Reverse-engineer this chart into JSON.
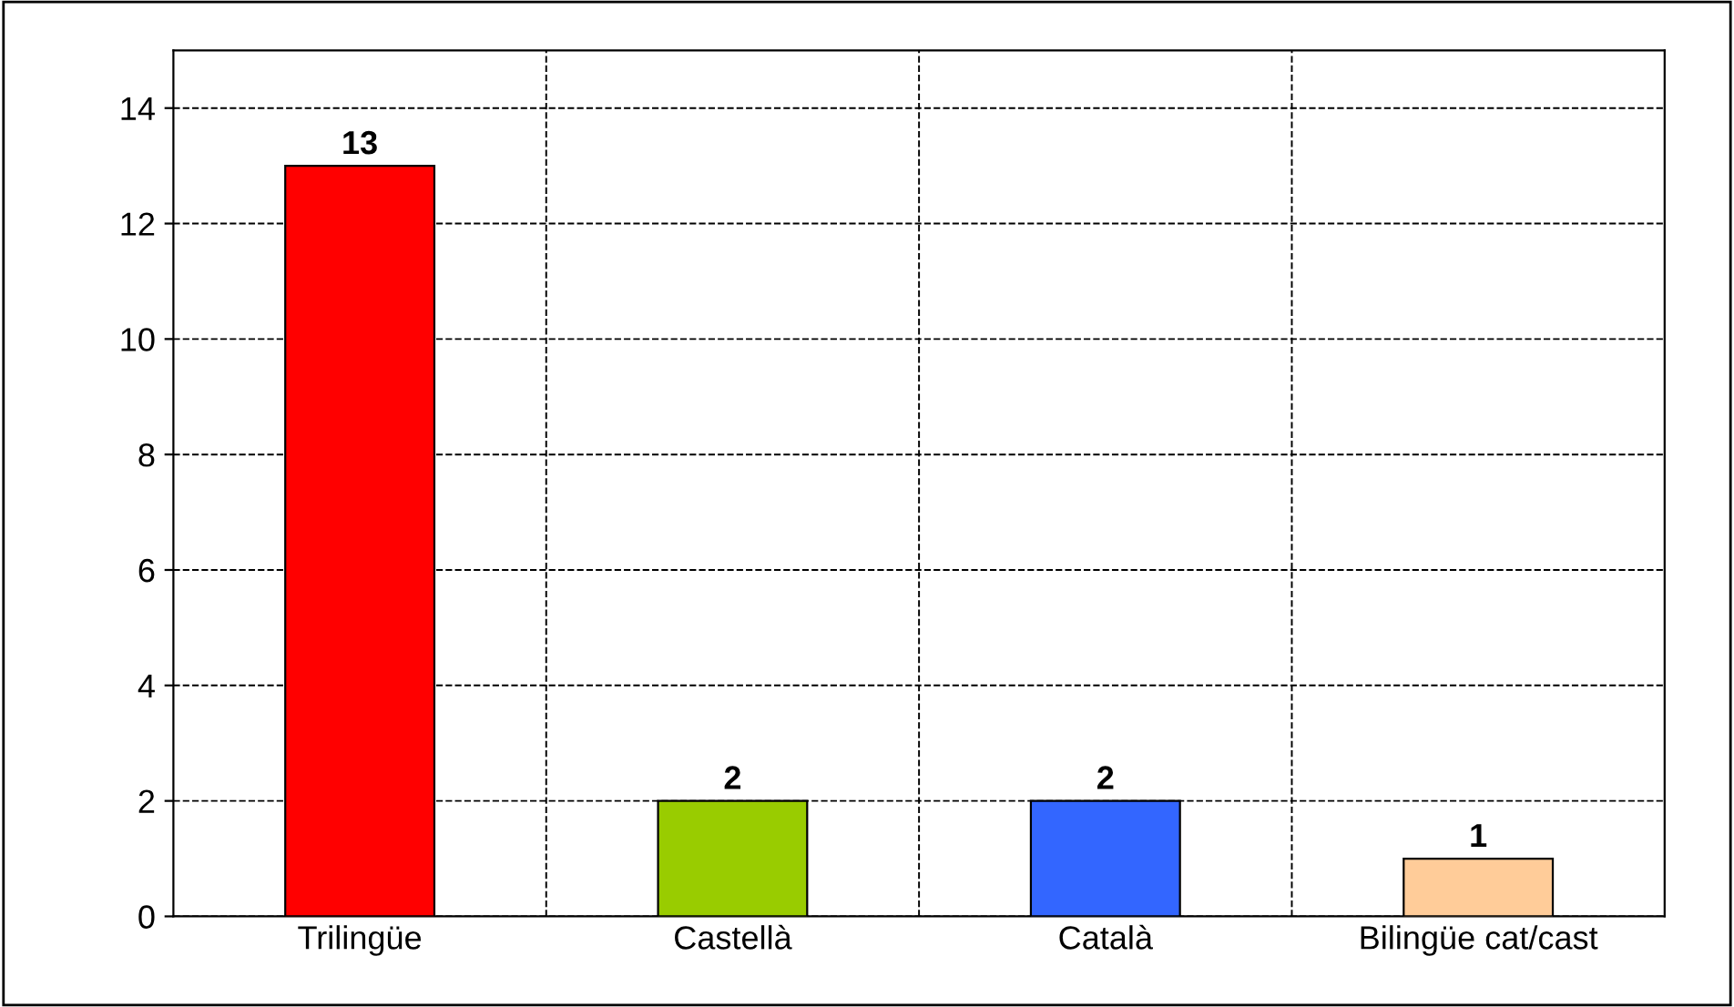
{
  "chart_data": {
    "type": "bar",
    "categories": [
      "Trilingüe",
      "Castellà",
      "Català",
      "Bilingüe cat/cast"
    ],
    "values": [
      13,
      2,
      2,
      1
    ],
    "colors": [
      "#ff0000",
      "#99cc00",
      "#3366ff",
      "#ffcc99"
    ],
    "ylim": [
      0,
      15
    ],
    "yticks": [
      0,
      2,
      4,
      6,
      8,
      10,
      12,
      14
    ],
    "grid": true,
    "data_labels": true
  }
}
